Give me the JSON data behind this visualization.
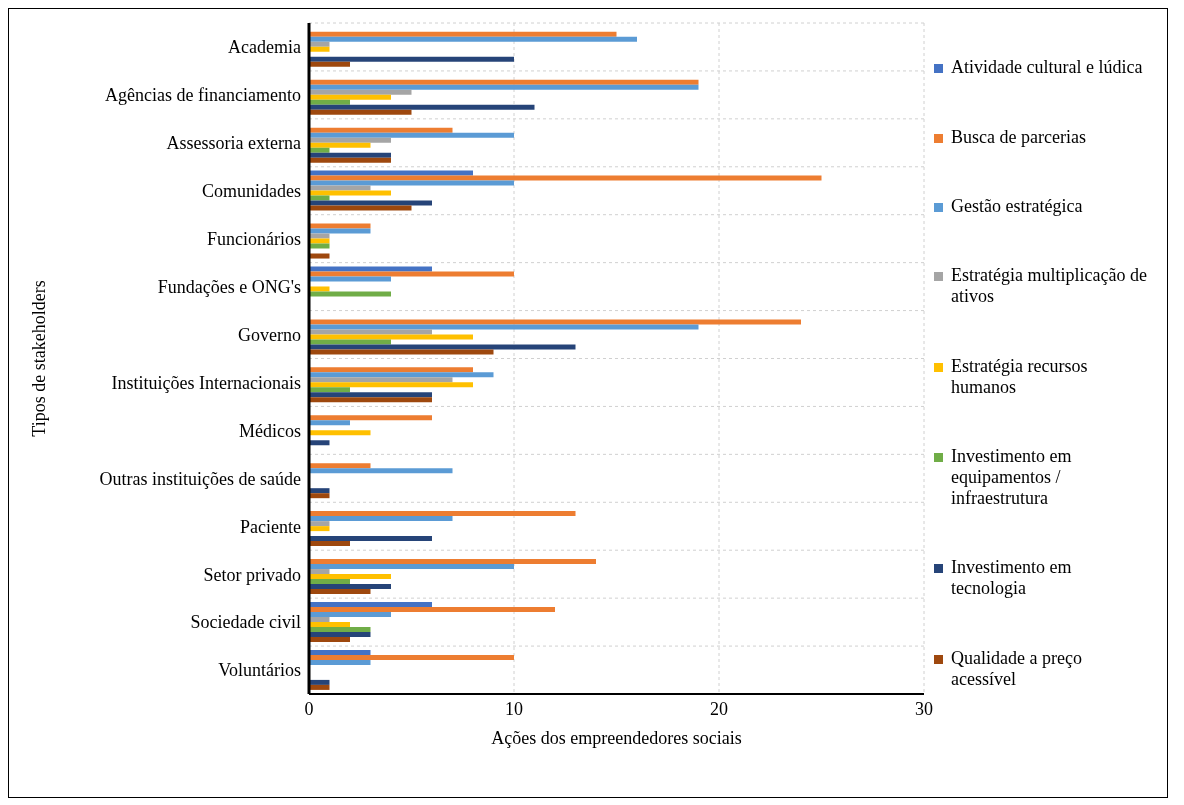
{
  "chart_data": {
    "type": "bar",
    "orientation": "horizontal",
    "xlabel": "Ações dos empreendedores sociais",
    "ylabel": "Tipos de stakeholders",
    "categories": [
      "Academia",
      "Agências de financiamento",
      "Assessoria externa",
      "Comunidades",
      "Funcionários",
      "Fundações e ONG's",
      "Governo",
      "Instituições Internacionais",
      "Médicos",
      "Outras instituições de saúde",
      "Paciente",
      "Setor privado",
      "Sociedade civil",
      "Voluntários"
    ],
    "series": [
      {
        "name": "Atividade cultural e lúdica",
        "color": "#4472c4",
        "values": [
          0,
          0,
          0,
          8,
          0,
          6,
          0,
          0,
          0,
          0,
          0,
          0,
          6,
          3
        ]
      },
      {
        "name": "Busca de parcerias",
        "color": "#ed7d31",
        "values": [
          15,
          19,
          7,
          25,
          3,
          10,
          24,
          8,
          6,
          3,
          13,
          14,
          12,
          10
        ]
      },
      {
        "name": "Gestão estratégica",
        "color": "#5b9bd5",
        "values": [
          16,
          19,
          10,
          10,
          3,
          4,
          19,
          9,
          2,
          7,
          7,
          10,
          4,
          3
        ]
      },
      {
        "name": "Estratégia multiplicação de ativos",
        "color": "#a5a5a5",
        "values": [
          1,
          5,
          4,
          3,
          1,
          0,
          6,
          7,
          0,
          0,
          1,
          1,
          1,
          0
        ]
      },
      {
        "name": "Estratégia recursos humanos",
        "color": "#ffc000",
        "values": [
          1,
          4,
          3,
          4,
          1,
          1,
          8,
          8,
          3,
          0,
          1,
          4,
          2,
          0
        ]
      },
      {
        "name": "Investimento em equipamentos / infraestrutura",
        "color": "#70ad47",
        "values": [
          0,
          2,
          1,
          1,
          1,
          4,
          4,
          2,
          0,
          0,
          0,
          2,
          3,
          0
        ]
      },
      {
        "name": "Investimento em tecnologia",
        "color": "#264478",
        "values": [
          10,
          11,
          4,
          6,
          0,
          0,
          13,
          6,
          1,
          1,
          6,
          4,
          3,
          1
        ]
      },
      {
        "name": "Qualidade a preço acessível",
        "color": "#9e480e",
        "values": [
          2,
          5,
          4,
          5,
          1,
          0,
          9,
          6,
          0,
          1,
          2,
          3,
          2,
          1
        ]
      }
    ],
    "xlim": [
      0,
      30
    ],
    "xticks": [
      0,
      10,
      20,
      30
    ],
    "grid": true,
    "legend": "right"
  }
}
